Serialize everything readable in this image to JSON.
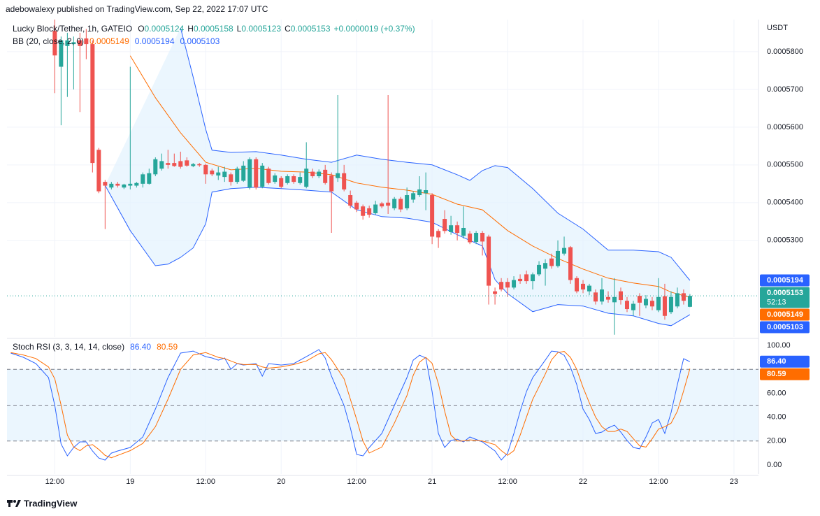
{
  "header": {
    "published": "adebowalexy published on TradingView.com, Sep 22, 2022 17:07 UTC"
  },
  "footer": {
    "brand": "TradingView"
  },
  "chart_data": [
    {
      "type": "candlestick",
      "title": "Lucky Block/Tether, 1h, GATEIO",
      "ohlc_keys": [
        "O",
        "H",
        "L",
        "C"
      ],
      "change": "+0.0000019 (+0.37%)",
      "axis_unit": "USDT",
      "countdown": "52:13",
      "up_color": "#26a69a",
      "down_color": "#ef5350",
      "x": [
        0,
        1,
        2,
        3,
        4,
        5,
        6,
        7,
        8,
        9,
        10,
        11,
        12,
        13,
        14,
        15,
        16,
        17,
        18,
        19,
        20,
        21,
        22,
        23,
        24,
        25,
        26,
        27,
        28,
        29,
        30,
        31,
        32,
        33,
        34,
        35,
        36,
        37,
        38,
        39,
        40,
        41,
        42,
        43,
        44,
        45,
        46,
        47,
        48,
        49,
        50,
        51,
        52,
        53,
        54,
        55,
        56,
        57,
        58,
        59,
        60,
        61,
        62,
        63,
        64,
        65,
        66,
        67,
        68,
        69,
        70,
        71,
        72,
        73,
        74,
        75,
        76,
        77,
        78,
        79,
        80,
        81,
        82,
        83,
        84,
        85,
        86,
        87,
        88,
        89,
        90,
        91,
        92,
        93,
        94,
        95,
        96,
        97,
        98,
        99,
        100,
        101
      ],
      "open": [
        0.0005855,
        0.000576,
        0.0005815,
        0.000582,
        0.000583,
        0.0005835,
        0.000582,
        0.000554,
        0.0005455,
        0.000544,
        0.000545,
        0.000544,
        0.0005445,
        0.0005445,
        0.000545,
        0.000545,
        0.0005475,
        0.000549,
        0.0005505,
        0.0005505,
        0.000551,
        0.0005512,
        0.0005497,
        0.0005502,
        0.00055,
        0.0005485,
        0.0005472,
        0.0005468,
        0.0005475,
        0.0005455,
        0.0005458,
        0.000544,
        0.0005515,
        0.0005442,
        0.000549,
        0.0005455,
        0.0005465,
        0.0005452,
        0.000547,
        0.0005452,
        0.0005442,
        0.0005482,
        0.000547,
        0.0005487,
        0.0005472,
        0.0005465,
        0.0005478,
        0.000542,
        0.00054,
        0.000539,
        0.0005385,
        0.0005372,
        0.0005398,
        0.00054,
        0.0005385,
        0.000541,
        0.0005385,
        0.0005408,
        0.000542,
        0.0005425,
        0.000542,
        0.0005325,
        0.0005357,
        0.0005322,
        0.000534,
        0.0005312,
        0.0005318,
        0.0005296,
        0.000532,
        0.000531,
        0.0005165,
        0.000519,
        0.000519,
        0.0005175,
        0.0005198,
        0.000521,
        0.0005192,
        0.000521,
        0.0005225,
        0.0005252,
        0.0005232,
        0.0005265,
        0.0005282,
        0.00052,
        0.0005185,
        0.0005165,
        0.0005162,
        0.0005138,
        0.000515,
        0.0005136,
        0.0005165,
        0.000514,
        0.0005115,
        0.0005153,
        0.0005128,
        0.000514,
        0.0005115,
        0.0005152,
        0.000511,
        0.0005125,
        0.000516,
        0.0005124
      ],
      "high": [
        0.0005885,
        0.000584,
        0.000585,
        0.000584,
        0.000585,
        0.000586,
        0.000583,
        0.0005545,
        0.000546,
        0.0005455,
        0.0005455,
        0.000545,
        0.000576,
        0.0005455,
        0.000548,
        0.000549,
        0.000552,
        0.000553,
        0.000554,
        0.000553,
        0.0005535,
        0.000552,
        0.0005505,
        0.0005505,
        0.0005503,
        0.000549,
        0.0005495,
        0.0005495,
        0.000548,
        0.0005495,
        0.000551,
        0.000552,
        0.000552,
        0.0005505,
        0.0005495,
        0.0005478,
        0.000547,
        0.0005475,
        0.0005475,
        0.000548,
        0.000556,
        0.000549,
        0.0005488,
        0.00055,
        0.000548,
        0.0005685,
        0.00055,
        0.0005432,
        0.0005405,
        0.0005395,
        0.0005392,
        0.0005405,
        0.0005402,
        0.0005685,
        0.0005415,
        0.0005415,
        0.000544,
        0.000543,
        0.000547,
        0.000548,
        0.0005425,
        0.000533,
        0.000538,
        0.0005365,
        0.000535,
        0.000539,
        0.0005325,
        0.0005325,
        0.0005325,
        0.0005315,
        0.0005175,
        0.00052,
        0.00052,
        0.0005205,
        0.000521,
        0.000522,
        0.0005215,
        0.0005245,
        0.000525,
        0.0005265,
        0.00053,
        0.000531,
        0.0005285,
        0.0005205,
        0.0005195,
        0.0005185,
        0.000517,
        0.00052,
        0.0005165,
        0.00052,
        0.0005175,
        0.000515,
        0.000514,
        0.000516,
        0.0005155,
        0.000515,
        0.00052,
        0.0005185,
        0.0005165,
        0.0005175,
        0.000517,
        0.0005158
      ],
      "low": [
        0.000569,
        0.0005605,
        0.000568,
        0.00057,
        0.000564,
        0.000578,
        0.000548,
        0.0005425,
        0.000533,
        0.0005435,
        0.000544,
        0.0005436,
        0.0005435,
        0.000544,
        0.000544,
        0.0005448,
        0.000547,
        0.0005485,
        0.000549,
        0.0005495,
        0.000549,
        0.0005495,
        0.0005494,
        0.0005495,
        0.000545,
        0.000547,
        0.000546,
        0.0005455,
        0.0005445,
        0.000545,
        0.0005455,
        0.0005435,
        0.0005435,
        0.0005438,
        0.0005448,
        0.000545,
        0.0005438,
        0.0005448,
        0.000545,
        0.0005448,
        0.0005438,
        0.0005465,
        0.0005465,
        0.0005448,
        0.000532,
        0.0005455,
        0.000543,
        0.0005385,
        0.0005375,
        0.0005355,
        0.000536,
        0.0005368,
        0.0005385,
        0.000537,
        0.000538,
        0.0005375,
        0.000538,
        0.00054,
        0.0005415,
        0.000538,
        0.000529,
        0.000528,
        0.0005318,
        0.0005315,
        0.00053,
        0.0005305,
        0.000529,
        0.000529,
        0.000526,
        0.000513,
        0.000513,
        0.0005165,
        0.000515,
        0.000517,
        0.0005185,
        0.0005185,
        0.000517,
        0.0005205,
        0.000518,
        0.0005225,
        0.0005228,
        0.000526,
        0.0005185,
        0.000516,
        0.000516,
        0.0005155,
        0.000513,
        0.000513,
        0.0005135,
        0.000505,
        0.000513,
        0.000511,
        0.00051,
        0.00051,
        0.000512,
        0.0005115,
        0.000511,
        0.000509,
        0.0005105,
        0.000512,
        0.000513,
        0.0005123
      ],
      "close": [
        0.000579,
        0.000583,
        0.000583,
        0.0005825,
        0.0005815,
        0.000582,
        0.0005505,
        0.000543,
        0.0005445,
        0.000545,
        0.0005445,
        0.0005448,
        0.000545,
        0.0005452,
        0.0005475,
        0.0005478,
        0.0005515,
        0.000551,
        0.00055,
        0.0005497,
        0.0005495,
        0.0005498,
        0.0005502,
        0.0005499,
        0.0005475,
        0.0005475,
        0.000548,
        0.0005482,
        0.0005455,
        0.000549,
        0.0005498,
        0.0005515,
        0.000544,
        0.0005498,
        0.0005452,
        0.0005472,
        0.0005442,
        0.000547,
        0.0005455,
        0.0005468,
        0.000549,
        0.000547,
        0.0005482,
        0.0005452,
        0.000543,
        0.0005478,
        0.0005435,
        0.0005392,
        0.0005382,
        0.0005365,
        0.0005368,
        0.0005395,
        0.000539,
        0.0005392,
        0.000541,
        0.0005382,
        0.000542,
        0.0005425,
        0.0005435,
        0.0005433,
        0.000531,
        0.0005308,
        0.0005325,
        0.000534,
        0.000532,
        0.0005333,
        0.0005295,
        0.000532,
        0.0005297,
        0.000518,
        0.0005158,
        0.000517,
        0.0005175,
        0.0005195,
        0.0005192,
        0.0005192,
        0.000521,
        0.0005235,
        0.000524,
        0.0005232,
        0.0005272,
        0.000528,
        0.0005195,
        0.0005165,
        0.000517,
        0.000518,
        0.0005138,
        0.000517,
        0.0005143,
        0.000515,
        0.0005142,
        0.0005118,
        0.0005132,
        0.0005135,
        0.0005145,
        0.0005125,
        0.000515,
        0.00051,
        0.000515,
        0.000516,
        0.000514,
        0.0005153
      ],
      "xlim": [
        -7.6,
        111.9
      ],
      "ylim": [
        0.0005044,
        0.0005885
      ],
      "yticks": [
        {
          "value": 0.00053,
          "label": "0.0005300"
        },
        {
          "value": 0.00054,
          "label": "0.0005400"
        },
        {
          "value": 0.00055,
          "label": "0.0005500"
        },
        {
          "value": 0.00056,
          "label": "0.0005600"
        },
        {
          "value": 0.00057,
          "label": "0.0005700"
        },
        {
          "value": 0.00058,
          "label": "0.0005800"
        }
      ],
      "grid": true,
      "indicator": {
        "name": "BB (20, close, 2, 0)",
        "fill": "#e3f2fd",
        "series": [
          {
            "color": "#ff6d00",
            "x": [
              12,
              16,
              20,
              24,
              28,
              32,
              36,
              40,
              44,
              48,
              52,
              56,
              60,
              64,
              68,
              72,
              76,
              80,
              84,
              88,
              92,
              96,
              98,
              101
            ],
            "values": [
              0.0005789,
              0.0005678,
              0.0005585,
              0.0005507,
              0.0005487,
              0.0005491,
              0.0005483,
              0.0005481,
              0.0005474,
              0.0005452,
              0.0005441,
              0.0005433,
              0.0005422,
              0.0005396,
              0.0005381,
              0.0005326,
              0.0005285,
              0.0005252,
              0.0005224,
              0.00052,
              0.0005187,
              0.0005178,
              0.0005163,
              0.0005149
            ]
          },
          {
            "color": "#2962ff",
            "x": [
              20,
              22,
              24,
              25,
              28,
              32,
              36,
              40,
              44,
              48,
              52,
              56,
              60,
              64,
              66,
              68,
              70,
              72,
              76,
              80,
              84,
              88,
              92,
              96,
              98,
              101
            ],
            "values": [
              0.0005863,
              0.0005733,
              0.0005594,
              0.0005539,
              0.0005533,
              0.0005535,
              0.0005526,
              0.0005515,
              0.0005507,
              0.0005526,
              0.0005515,
              0.0005507,
              0.00055,
              0.0005474,
              0.0005459,
              0.0005485,
              0.0005498,
              0.0005493,
              0.0005437,
              0.0005372,
              0.000533,
              0.0005274,
              0.0005274,
              0.000527,
              0.0005255,
              0.0005194
            ]
          },
          {
            "color": "#2962ff",
            "x": [
              8,
              12,
              16,
              18,
              20,
              22,
              24,
              25,
              28,
              32,
              36,
              40,
              44,
              48,
              52,
              56,
              60,
              64,
              68,
              70,
              72,
              76,
              80,
              84,
              88,
              92,
              96,
              98,
              101
            ],
            "values": [
              0.0005446,
              0.0005326,
              0.0005233,
              0.0005237,
              0.0005255,
              0.000528,
              0.0005344,
              0.0005428,
              0.0005437,
              0.0005441,
              0.0005437,
              0.0005433,
              0.0005428,
              0.0005381,
              0.0005363,
              0.0005359,
              0.0005348,
              0.0005315,
              0.0005285,
              0.0005196,
              0.0005159,
              0.0005111,
              0.000513,
              0.0005126,
              0.0005107,
              0.00051,
              0.000508,
              0.0005074,
              0.0005103
            ]
          }
        ]
      }
    },
    {
      "type": "line",
      "title": "Stoch RSI (3, 3, 14, 14, close)",
      "x": [
        -7,
        -5,
        -3,
        -1,
        0,
        1,
        2,
        3,
        4,
        5,
        6,
        7,
        8,
        9,
        10,
        12,
        14,
        16,
        18,
        20,
        22,
        24,
        25,
        26,
        27,
        28,
        29,
        30,
        32,
        33,
        34,
        36,
        38,
        40,
        42,
        43,
        44,
        46,
        47,
        48,
        49,
        50,
        52,
        54,
        56,
        57,
        58,
        59,
        60,
        61,
        62,
        63,
        64,
        65,
        66,
        68,
        70,
        71,
        72,
        73,
        74,
        75,
        76,
        78,
        79,
        80,
        81,
        82,
        83,
        84,
        85,
        86,
        87,
        88,
        89,
        90,
        91,
        92,
        93,
        94,
        95,
        96,
        97,
        98,
        99,
        100,
        101
      ],
      "series": [
        {
          "color": "#2962ff",
          "last_label": "86.40",
          "values": [
            93.6,
            90.1,
            84.8,
            73.1,
            49.7,
            17.5,
            7.6,
            14.6,
            19.3,
            19.3,
            11.7,
            5.8,
            4.1,
            9.9,
            11.7,
            14.6,
            23.4,
            46.8,
            73.1,
            93.6,
            95.3,
            90.6,
            89.5,
            87.7,
            89.5,
            80.1,
            84.8,
            83.6,
            84.8,
            74.3,
            84.8,
            83.6,
            84.8,
            90.6,
            96.5,
            89.5,
            74.3,
            49.7,
            31.0,
            8.8,
            7.6,
            14.6,
            26.3,
            49.7,
            73.1,
            87.7,
            91.8,
            89.5,
            61.4,
            26.3,
            14.6,
            20.5,
            21.6,
            19.3,
            23.4,
            19.3,
            11.7,
            4.1,
            9.9,
            26.3,
            45.0,
            61.4,
            73.1,
            87.7,
            95.3,
            94.7,
            91.8,
            81.9,
            67.3,
            46.8,
            38.0,
            26.3,
            27.5,
            31.0,
            33.3,
            27.5,
            20.5,
            14.6,
            13.5,
            23.4,
            35.1,
            38.0,
            26.3,
            43.9,
            67.3,
            88.9,
            86.4
          ]
        },
        {
          "color": "#ff6d00",
          "last_label": "80.59",
          "values": [
            94,
            92,
            89,
            82,
            72,
            50,
            25,
            15,
            12,
            16,
            17,
            13,
            8,
            6,
            8,
            12,
            18,
            32,
            55,
            80,
            92,
            94,
            92,
            90,
            89,
            87,
            85,
            84,
            84,
            82,
            81,
            82,
            84,
            87,
            93,
            94,
            88,
            72,
            55,
            38,
            20,
            10,
            15,
            35,
            58,
            75,
            86,
            90,
            85,
            68,
            45,
            25,
            20,
            20,
            21,
            20,
            17,
            12,
            8,
            12,
            25,
            40,
            55,
            76,
            88,
            94,
            95,
            90,
            80,
            65,
            52,
            40,
            32,
            28,
            28,
            30,
            28,
            22,
            16,
            15,
            22,
            30,
            32,
            35,
            45,
            62,
            80.59
          ]
        }
      ],
      "xlim": [
        -7.6,
        111.9
      ],
      "ylim": [
        -7.6,
        104.7
      ],
      "yticks": [
        {
          "value": 0,
          "label": "0.00"
        },
        {
          "value": 20,
          "label": "20.00"
        },
        {
          "value": 40,
          "label": "40.00"
        },
        {
          "value": 60,
          "label": "60.00"
        },
        {
          "value": 100,
          "label": "100.00"
        }
      ],
      "levels": [
        80,
        50,
        20
      ],
      "band_fill": "#e3f2fd",
      "xticks": [
        {
          "value": 0,
          "label": "12:00"
        },
        {
          "value": 12,
          "label": "19"
        },
        {
          "value": 24,
          "label": "12:00"
        },
        {
          "value": 36,
          "label": "20"
        },
        {
          "value": 48,
          "label": "12:00"
        },
        {
          "value": 60,
          "label": "21"
        },
        {
          "value": 72,
          "label": "12:00"
        },
        {
          "value": 84,
          "label": "22"
        },
        {
          "value": 96,
          "label": "12:00"
        },
        {
          "value": 108,
          "label": "23"
        }
      ]
    }
  ]
}
